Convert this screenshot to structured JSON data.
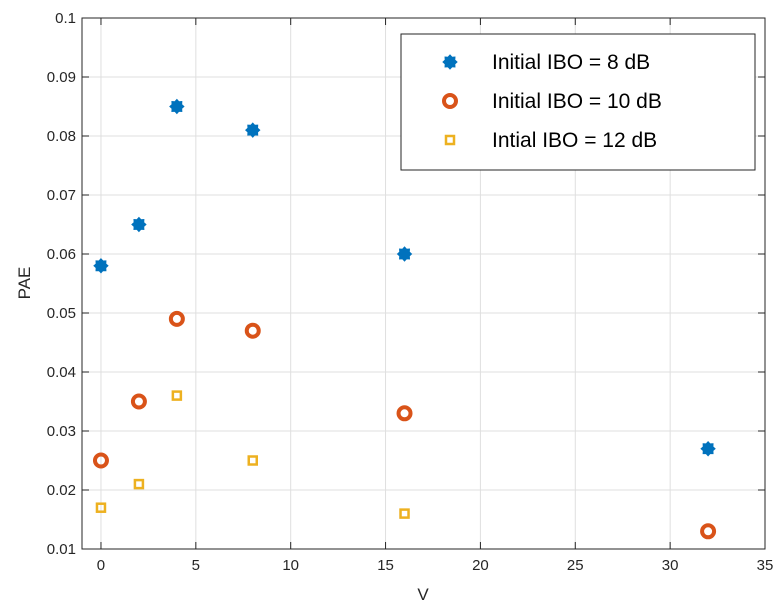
{
  "chart_data": {
    "type": "scatter",
    "xlabel": "V",
    "ylabel": "PAE",
    "xlim": [
      -1,
      35
    ],
    "ylim": [
      0.01,
      0.1
    ],
    "xticks": [
      0,
      5,
      10,
      15,
      20,
      25,
      30,
      35
    ],
    "yticks": [
      0.01,
      0.02,
      0.03,
      0.04,
      0.05,
      0.06,
      0.07,
      0.08,
      0.09,
      0.1
    ],
    "xtick_labels": [
      "0",
      "5",
      "10",
      "15",
      "20",
      "25",
      "30",
      "35"
    ],
    "ytick_labels": [
      "0.01",
      "0.02",
      "0.03",
      "0.04",
      "0.05",
      "0.06",
      "0.07",
      "0.08",
      "0.09",
      "0.1"
    ],
    "grid": true,
    "legend_position": "top-right",
    "series": [
      {
        "name": "Initial IBO = 8 dB",
        "marker": "star",
        "color": "#0072BD",
        "x": [
          0,
          2,
          4,
          8,
          16,
          32
        ],
        "y": [
          0.058,
          0.065,
          0.085,
          0.081,
          0.06,
          0.027
        ]
      },
      {
        "name": "Initial IBO = 10 dB",
        "marker": "circle",
        "color": "#D95319",
        "x": [
          0,
          2,
          4,
          8,
          16,
          32
        ],
        "y": [
          0.025,
          0.035,
          0.049,
          0.047,
          0.033,
          0.013
        ]
      },
      {
        "name": "Intial IBO = 12 dB",
        "marker": "square",
        "color": "#EDB120",
        "x": [
          0,
          2,
          4,
          8,
          16,
          32
        ],
        "y": [
          0.017,
          0.021,
          0.036,
          0.025,
          0.016,
          null
        ]
      }
    ]
  }
}
